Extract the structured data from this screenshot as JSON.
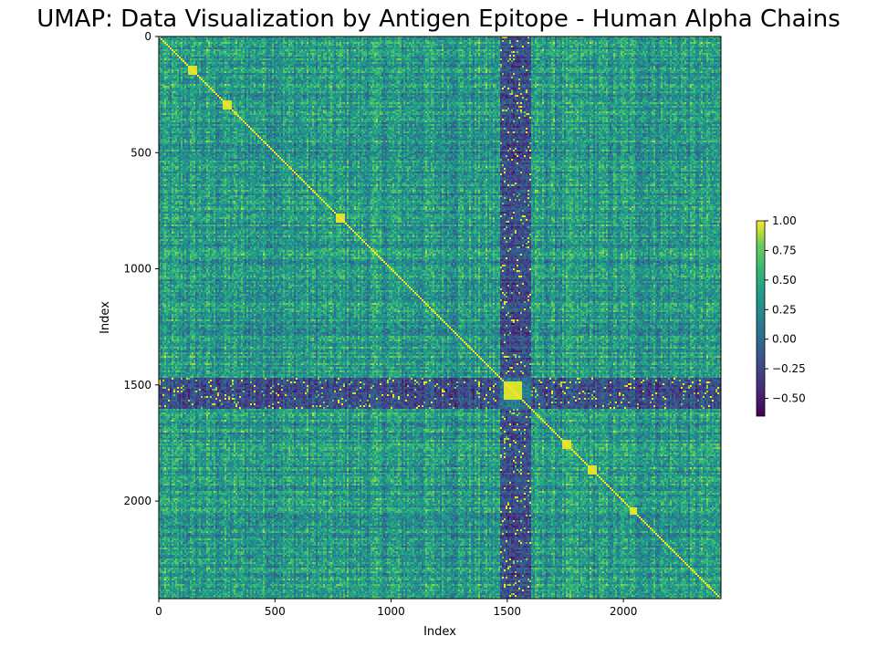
{
  "chart_data": {
    "type": "heatmap",
    "title": "UMAP: Data Visualization by Antigen Epitope - Human Alpha Chains",
    "xlabel": "Index",
    "ylabel": "Index",
    "xlim": [
      0,
      2420
    ],
    "ylim": [
      2420,
      0
    ],
    "matrix_size": 2420,
    "x_ticks": [
      0,
      500,
      1000,
      1500,
      2000
    ],
    "y_ticks": [
      0,
      500,
      1000,
      1500,
      2000
    ],
    "colorscale": "viridis",
    "colorbar": {
      "min": -0.65,
      "max": 1.0,
      "ticks": [
        1.0,
        0.75,
        0.5,
        0.25,
        0.0,
        -0.25,
        -0.5
      ],
      "tick_labels": [
        "1.00",
        "0.75",
        "0.50",
        "0.25",
        "0.00",
        "−0.25",
        "−0.50"
      ]
    },
    "diagonal_value": 1.0,
    "features": {
      "low_band_rows": [
        [
          1465,
          1600
        ]
      ],
      "low_band_cols": [
        [
          1465,
          1600
        ]
      ],
      "high_block": [
        [
          1480,
          1560
        ],
        [
          1480,
          1560
        ]
      ],
      "high_spots": [
        [
          780,
          780
        ],
        [
          2040,
          2040
        ],
        [
          1750,
          1750
        ],
        [
          1860,
          1860
        ],
        [
          290,
          290
        ],
        [
          140,
          140
        ]
      ]
    }
  }
}
